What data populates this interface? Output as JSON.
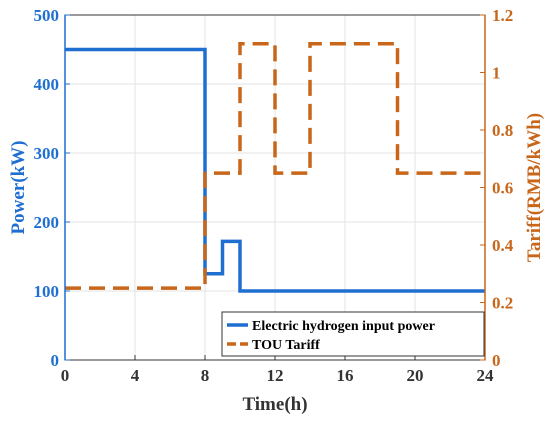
{
  "chart_data": {
    "type": "line",
    "title": "",
    "xlabel": "Time(h)",
    "ylabel_left": "Power(kW)",
    "ylabel_right": "Tariff(RMB/kWh)",
    "xlim": [
      0,
      24
    ],
    "ylim_left": [
      0,
      500
    ],
    "ylim_right": [
      0,
      1.2
    ],
    "x_ticks": [
      "0",
      "4",
      "8",
      "12",
      "16",
      "20",
      "24"
    ],
    "y_left_ticks": [
      "0",
      "100",
      "200",
      "300",
      "400",
      "500"
    ],
    "y_right_ticks": [
      "0",
      "0.2",
      "0.4",
      "0.6",
      "0.8",
      "1",
      "1.2"
    ],
    "grid": true,
    "legend_position": "bottom-right",
    "series": [
      {
        "name": "Electric hydrogen input power",
        "axis": "left",
        "style": "solid",
        "color": "#1f6fd1",
        "x": [
          0,
          8,
          8,
          9,
          9,
          10,
          10,
          24
        ],
        "y": [
          450,
          450,
          125,
          125,
          172,
          172,
          100,
          100
        ]
      },
      {
        "name": "TOU Tariff",
        "axis": "right",
        "style": "dashed",
        "color": "#c8661a",
        "x": [
          0,
          8,
          8,
          9,
          9,
          10,
          10,
          12,
          12,
          14,
          14,
          19,
          19,
          24
        ],
        "y": [
          0.25,
          0.25,
          0.65,
          0.65,
          0.65,
          0.65,
          1.1,
          1.1,
          0.65,
          0.65,
          1.1,
          1.1,
          0.65,
          0.65
        ]
      }
    ],
    "colors": {
      "left_axis": "#1f6fd1",
      "right_axis": "#c8661a",
      "x_axis": "#333333",
      "grid": "#e3e3e3"
    }
  }
}
